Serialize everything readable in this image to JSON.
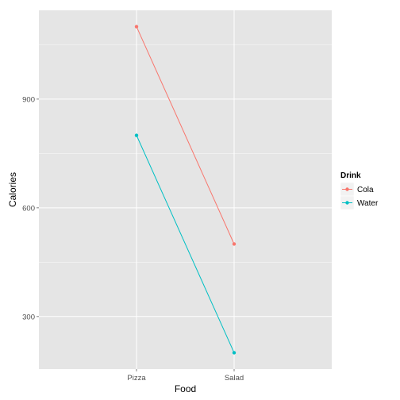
{
  "chart_data": {
    "type": "line",
    "x": [
      "Pizza",
      "Salad"
    ],
    "series": [
      {
        "name": "Cola",
        "values": [
          1100,
          500
        ],
        "color": "#F8766D"
      },
      {
        "name": "Water",
        "values": [
          800,
          200
        ],
        "color": "#00BFC4"
      }
    ],
    "xlabel": "Food",
    "ylabel": "Calories",
    "yticks": [
      300,
      600,
      900
    ],
    "ylim": [
      155,
      1145
    ],
    "grid": true,
    "legend": {
      "title": "Drink",
      "placement": "right"
    },
    "panel_background": "#E5E5E5",
    "grid_color": "#FFFFFF"
  }
}
